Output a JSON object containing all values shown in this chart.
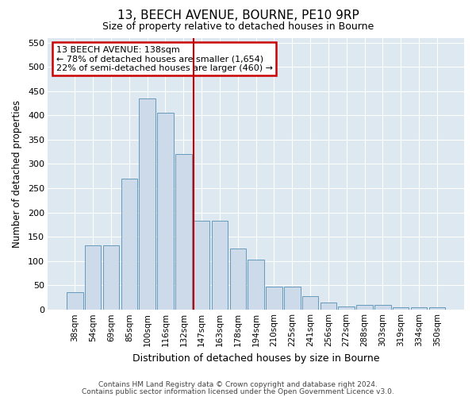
{
  "title1": "13, BEECH AVENUE, BOURNE, PE10 9RP",
  "title2": "Size of property relative to detached houses in Bourne",
  "xlabel": "Distribution of detached houses by size in Bourne",
  "ylabel": "Number of detached properties",
  "categories": [
    "38sqm",
    "54sqm",
    "69sqm",
    "85sqm",
    "100sqm",
    "116sqm",
    "132sqm",
    "147sqm",
    "163sqm",
    "178sqm",
    "194sqm",
    "210sqm",
    "225sqm",
    "241sqm",
    "256sqm",
    "272sqm",
    "288sqm",
    "303sqm",
    "319sqm",
    "334sqm",
    "350sqm"
  ],
  "values": [
    35,
    133,
    133,
    270,
    435,
    405,
    320,
    183,
    183,
    125,
    103,
    47,
    47,
    28,
    15,
    7,
    10,
    10,
    5,
    5,
    5
  ],
  "bar_color": "#ccdaea",
  "bar_edge_color": "#6699bb",
  "red_line_x": 6.57,
  "annotation_text": "13 BEECH AVENUE: 138sqm\n← 78% of detached houses are smaller (1,654)\n22% of semi-detached houses are larger (460) →",
  "annotation_box_facecolor": "#ffffff",
  "annotation_box_edgecolor": "#cc0000",
  "ylim": [
    0,
    560
  ],
  "yticks": [
    0,
    50,
    100,
    150,
    200,
    250,
    300,
    350,
    400,
    450,
    500,
    550
  ],
  "plot_bgcolor": "#dde8f0",
  "fig_bgcolor": "#ffffff",
  "grid_color": "#ffffff",
  "footer1": "Contains HM Land Registry data © Crown copyright and database right 2024.",
  "footer2": "Contains public sector information licensed under the Open Government Licence v3.0."
}
